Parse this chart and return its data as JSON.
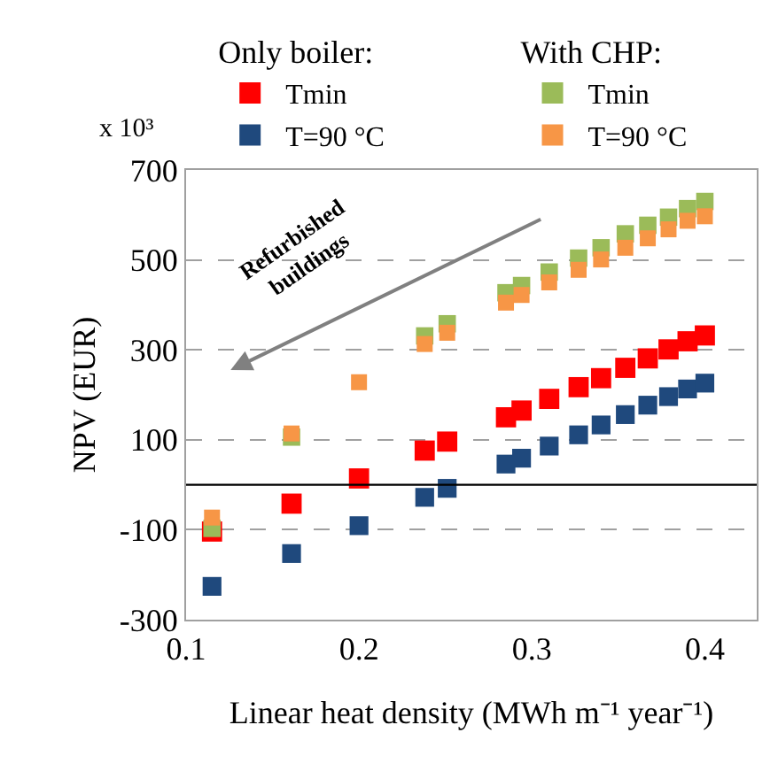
{
  "chart_data": {
    "type": "scatter",
    "xlabel": "Linear heat density (MWh m⁻¹ year⁻¹)",
    "ylabel": "NPV (EUR)",
    "x": [
      0.115,
      0.161,
      0.2,
      0.238,
      0.251,
      0.285,
      0.294,
      0.31,
      0.327,
      0.34,
      0.354,
      0.367,
      0.379,
      0.39,
      0.4
    ],
    "series": [
      {
        "name": "Tmin",
        "color": "#ff0000",
        "values": [
          -104,
          -42,
          14,
          76,
          96,
          150,
          165,
          191,
          217,
          237,
          260,
          281,
          301,
          319,
          332
        ]
      },
      {
        "name": "T=90 °C",
        "color": "#1f497d",
        "values": [
          -226,
          -153,
          -91,
          -28,
          -8,
          46,
          59,
          86,
          111,
          133,
          156,
          177,
          196,
          213,
          226
        ]
      },
      {
        "name": "Tmin",
        "color": "#9bbb59",
        "values": [
          -97,
          106,
          null,
          331,
          358,
          427,
          443,
          473,
          504,
          527,
          558,
          577,
          595,
          614,
          630
        ]
      },
      {
        "name": "T=90 °C",
        "color": "#f79646",
        "values": [
          -73,
          114,
          228,
          313,
          338,
          405,
          422,
          450,
          478,
          501,
          527,
          548,
          568,
          587,
          597
        ]
      }
    ],
    "annotations": [
      "Only boiler:",
      "With CHP:",
      "x 10³",
      "Refurbished buildings"
    ],
    "xlim": [
      0.1,
      0.43
    ],
    "xticks": [
      0.1,
      0.2,
      0.3,
      0.4
    ],
    "ylim": [
      -300,
      700
    ],
    "yticks": [
      -300,
      -100,
      100,
      300,
      500,
      700
    ],
    "ref_lines": [
      {
        "axis": "y",
        "value": 0,
        "color": "#000000",
        "line_style": "solid"
      }
    ],
    "grid": "y",
    "legend": "top",
    "marker": "square"
  }
}
